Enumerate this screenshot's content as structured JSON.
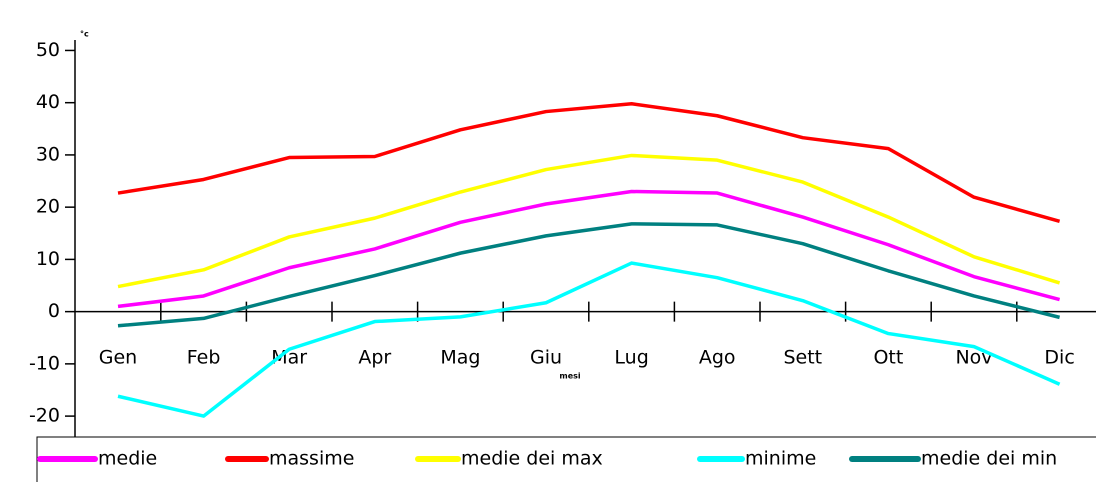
{
  "chart_data": {
    "type": "line",
    "y_unit": "°c",
    "x_label": "mesi",
    "categories": [
      "Gen",
      "Feb",
      "Mar",
      "Apr",
      "Mag",
      "Giu",
      "Lug",
      "Ago",
      "Sett",
      "Ott",
      "Nov",
      "Dic"
    ],
    "series": [
      {
        "name": "medie",
        "color": "#ff00ff",
        "values": [
          1,
          3,
          8.4,
          12,
          17.1,
          20.6,
          23,
          22.7,
          18.1,
          12.8,
          6.7,
          2.3
        ]
      },
      {
        "name": "massime",
        "color": "#ff0000",
        "values": [
          22.7,
          25.3,
          29.5,
          29.7,
          34.8,
          38.3,
          39.8,
          37.5,
          33.3,
          31.2,
          21.9,
          17.3
        ]
      },
      {
        "name": "medie dei max",
        "color": "#ffff00",
        "values": [
          4.8,
          8,
          14.3,
          17.9,
          22.9,
          27.2,
          29.9,
          29,
          24.8,
          18.1,
          10.5,
          5.5
        ]
      },
      {
        "name": "minime",
        "color": "#00ffff",
        "values": [
          -16.2,
          -20,
          -7.2,
          -1.9,
          -1,
          1.7,
          9.3,
          6.5,
          2.1,
          -4.2,
          -6.7,
          -13.9
        ]
      },
      {
        "name": "medie dei min",
        "color": "#008080",
        "values": [
          -2.7,
          -1.3,
          2.9,
          6.9,
          11.2,
          14.5,
          16.8,
          16.6,
          13,
          7.8,
          3,
          -1.1
        ]
      }
    ],
    "ylim": [
      -24,
      52
    ],
    "yticks": [
      -20,
      -10,
      0,
      10,
      20,
      30,
      40,
      50
    ]
  }
}
